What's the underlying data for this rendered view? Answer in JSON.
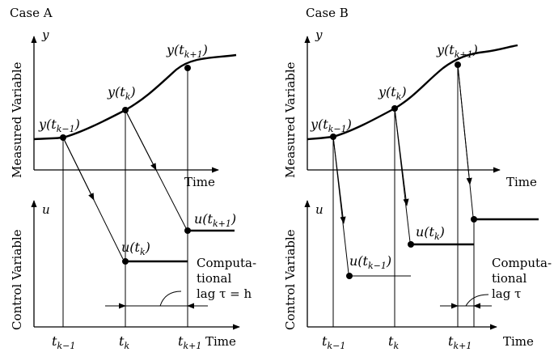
{
  "panels": [
    {
      "id": "a",
      "title": "Case A",
      "y_symbol": "y",
      "u_symbol": "u",
      "y_axis_label": "Measured Variable",
      "u_axis_label": "Control Variable",
      "time_label": "Time",
      "ticks": [
        {
          "base": "t",
          "sub": "k−1"
        },
        {
          "base": "t",
          "sub": "k"
        },
        {
          "base": "t",
          "sub": "k+1"
        }
      ],
      "y_points": [
        {
          "text": "y(tₖ₋₁)",
          "base": "y(t",
          "sub": "k−1",
          "close": ")"
        },
        {
          "text": "y(tₖ)",
          "base": "y(t",
          "sub": "k",
          "close": ")"
        },
        {
          "text": "y(tₖ₊₁)",
          "base": "y(t",
          "sub": "k+1",
          "close": ")"
        }
      ],
      "u_points": [
        {
          "base": "u(t",
          "sub": "k",
          "close": ")"
        },
        {
          "base": "u(t",
          "sub": "k+1",
          "close": ")"
        }
      ],
      "lag_lines": [
        "Computa-",
        "tional",
        "lag  τ = h"
      ]
    },
    {
      "id": "b",
      "title": "Case B",
      "y_symbol": "y",
      "u_symbol": "u",
      "y_axis_label": "Measured Variable",
      "u_axis_label": "Control Variable",
      "time_label": "Time",
      "ticks": [
        {
          "base": "t",
          "sub": "k−1"
        },
        {
          "base": "t",
          "sub": "k"
        },
        {
          "base": "t",
          "sub": "k+1"
        }
      ],
      "y_points": [
        {
          "base": "y(t",
          "sub": "k−1",
          "close": ")"
        },
        {
          "base": "y(t",
          "sub": "k",
          "close": ")"
        },
        {
          "base": "y(t",
          "sub": "k+1",
          "close": ")"
        }
      ],
      "u_points": [
        {
          "base": "u(t",
          "sub": "k−1",
          "close": ")"
        },
        {
          "base": "u(t",
          "sub": "k",
          "close": ")"
        }
      ],
      "lag_lines": [
        "Computa-",
        "tional",
        "lag  τ"
      ]
    }
  ]
}
